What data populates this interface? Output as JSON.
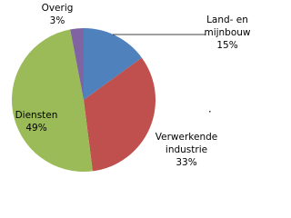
{
  "chart_data": {
    "type": "pie",
    "categories": [
      "Land- en mijnbouw",
      "Verwerkende industrie",
      "Diensten",
      "Overig"
    ],
    "values": [
      15,
      33,
      49,
      3
    ],
    "value_labels": [
      "15%",
      "33%",
      "49%",
      "3%"
    ],
    "colors": [
      "#4f81bd",
      "#c0504d",
      "#9bbb59",
      "#8064a2"
    ]
  }
}
